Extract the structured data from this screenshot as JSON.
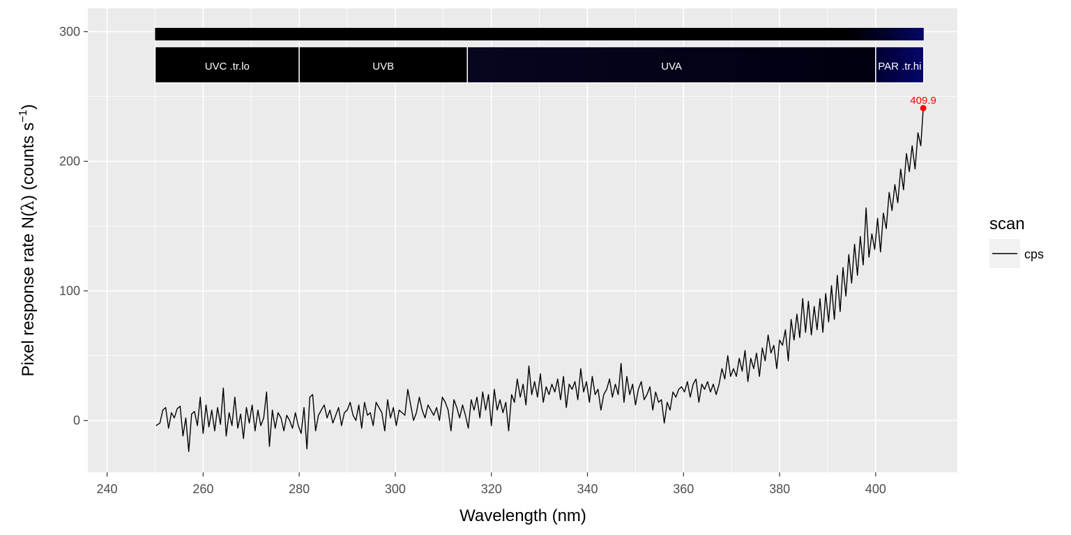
{
  "chart_data": {
    "type": "line",
    "xlabel": "Wavelength (nm)",
    "ylabel_parts": {
      "main": "Pixel  response  rate  N(",
      "lambda": "λ",
      "mid": ")  (counts  s",
      "sup": "−1",
      "end": ")"
    },
    "xlim": [
      236,
      417
    ],
    "ylim": [
      -40,
      318
    ],
    "x_ticks": [
      240,
      260,
      280,
      300,
      320,
      340,
      360,
      380,
      400
    ],
    "x_tick_labels": [
      "240",
      "260",
      "280",
      "300",
      "320",
      "340",
      "360",
      "380",
      "400"
    ],
    "y_ticks": [
      0,
      100,
      200,
      300
    ],
    "y_tick_labels": [
      "0",
      "100",
      "200",
      "300"
    ],
    "grid": true,
    "legend": {
      "title": "scan",
      "placement": "right",
      "entries": [
        "cps"
      ]
    },
    "wavebands": [
      {
        "label": "UVC .tr.lo",
        "start": 250,
        "end": 280,
        "color": "#000000"
      },
      {
        "label": "UVB",
        "start": 280,
        "end": 315,
        "color": "#000000"
      },
      {
        "label": "UVA",
        "start": 315,
        "end": 400,
        "color_start": "#080520",
        "color_end": "#000010"
      },
      {
        "label": "PAR .tr.hi",
        "start": 400,
        "end": 410,
        "color_start": "#000033",
        "color_end": "#06066b"
      }
    ],
    "peak": {
      "x": 409.9,
      "y": 241,
      "label": "409.9",
      "color": "#ff0000"
    },
    "series": [
      {
        "name": "cps",
        "color": "#000000",
        "points": [
          [
            250.2,
            -4
          ],
          [
            251.0,
            -2
          ],
          [
            251.6,
            8
          ],
          [
            252.2,
            10
          ],
          [
            252.8,
            -6
          ],
          [
            253.4,
            6
          ],
          [
            254.0,
            2
          ],
          [
            254.6,
            9
          ],
          [
            255.2,
            11
          ],
          [
            255.8,
            -12
          ],
          [
            256.4,
            2
          ],
          [
            257.0,
            -24
          ],
          [
            257.6,
            5
          ],
          [
            258.2,
            7
          ],
          [
            258.8,
            -4
          ],
          [
            259.4,
            18
          ],
          [
            260.0,
            -10
          ],
          [
            260.6,
            12
          ],
          [
            261.2,
            -5
          ],
          [
            261.8,
            8
          ],
          [
            262.4,
            -8
          ],
          [
            263.0,
            10
          ],
          [
            263.6,
            -3
          ],
          [
            264.2,
            25
          ],
          [
            264.8,
            -12
          ],
          [
            265.4,
            6
          ],
          [
            266.0,
            -4
          ],
          [
            266.6,
            18
          ],
          [
            267.2,
            -6
          ],
          [
            267.8,
            5
          ],
          [
            268.4,
            -14
          ],
          [
            269.0,
            10
          ],
          [
            269.6,
            -2
          ],
          [
            270.2,
            12
          ],
          [
            270.8,
            -8
          ],
          [
            271.4,
            8
          ],
          [
            272.0,
            -4
          ],
          [
            272.6,
            2
          ],
          [
            273.2,
            22
          ],
          [
            273.8,
            -20
          ],
          [
            274.4,
            8
          ],
          [
            275.0,
            -6
          ],
          [
            275.6,
            6
          ],
          [
            276.2,
            2
          ],
          [
            276.8,
            -8
          ],
          [
            277.4,
            4
          ],
          [
            278.0,
            0
          ],
          [
            278.6,
            -6
          ],
          [
            279.2,
            6
          ],
          [
            279.8,
            -4
          ],
          [
            280.4,
            -10
          ],
          [
            281.0,
            10
          ],
          [
            281.6,
            -22
          ],
          [
            282.2,
            18
          ],
          [
            282.8,
            20
          ],
          [
            283.4,
            -8
          ],
          [
            284.0,
            4
          ],
          [
            284.6,
            8
          ],
          [
            285.2,
            12
          ],
          [
            285.8,
            2
          ],
          [
            286.4,
            8
          ],
          [
            287.0,
            -2
          ],
          [
            287.6,
            4
          ],
          [
            288.2,
            10
          ],
          [
            288.8,
            -4
          ],
          [
            289.4,
            6
          ],
          [
            290.0,
            8
          ],
          [
            290.6,
            14
          ],
          [
            291.2,
            4
          ],
          [
            291.8,
            0
          ],
          [
            292.4,
            12
          ],
          [
            293.0,
            -6
          ],
          [
            293.6,
            14
          ],
          [
            294.2,
            4
          ],
          [
            294.8,
            6
          ],
          [
            295.4,
            -4
          ],
          [
            296.0,
            14
          ],
          [
            296.6,
            10
          ],
          [
            297.2,
            6
          ],
          [
            297.8,
            -8
          ],
          [
            298.4,
            16
          ],
          [
            299.0,
            2
          ],
          [
            299.6,
            10
          ],
          [
            300.2,
            -4
          ],
          [
            300.8,
            8
          ],
          [
            301.4,
            6
          ],
          [
            302.0,
            4
          ],
          [
            302.6,
            24
          ],
          [
            303.2,
            12
          ],
          [
            303.8,
            0
          ],
          [
            304.4,
            6
          ],
          [
            305.0,
            18
          ],
          [
            305.6,
            8
          ],
          [
            306.2,
            2
          ],
          [
            306.8,
            12
          ],
          [
            307.4,
            8
          ],
          [
            308.0,
            4
          ],
          [
            308.6,
            10
          ],
          [
            309.2,
            0
          ],
          [
            309.8,
            18
          ],
          [
            310.4,
            14
          ],
          [
            311.0,
            8
          ],
          [
            311.6,
            -8
          ],
          [
            312.2,
            16
          ],
          [
            312.8,
            10
          ],
          [
            313.4,
            2
          ],
          [
            314.0,
            12
          ],
          [
            314.6,
            4
          ],
          [
            315.2,
            -6
          ],
          [
            315.8,
            16
          ],
          [
            316.4,
            8
          ],
          [
            317.0,
            18
          ],
          [
            317.6,
            2
          ],
          [
            318.2,
            22
          ],
          [
            318.8,
            8
          ],
          [
            319.4,
            20
          ],
          [
            320.0,
            -4
          ],
          [
            320.6,
            24
          ],
          [
            321.2,
            8
          ],
          [
            321.8,
            16
          ],
          [
            322.4,
            6
          ],
          [
            323.0,
            14
          ],
          [
            323.6,
            -8
          ],
          [
            324.2,
            20
          ],
          [
            324.8,
            14
          ],
          [
            325.4,
            32
          ],
          [
            326.0,
            18
          ],
          [
            326.6,
            28
          ],
          [
            327.2,
            12
          ],
          [
            327.8,
            42
          ],
          [
            328.4,
            20
          ],
          [
            329.0,
            30
          ],
          [
            329.6,
            18
          ],
          [
            330.2,
            36
          ],
          [
            330.8,
            14
          ],
          [
            331.4,
            26
          ],
          [
            332.0,
            20
          ],
          [
            332.6,
            28
          ],
          [
            333.2,
            22
          ],
          [
            333.8,
            32
          ],
          [
            334.4,
            16
          ],
          [
            335.0,
            34
          ],
          [
            335.6,
            10
          ],
          [
            336.2,
            28
          ],
          [
            336.8,
            24
          ],
          [
            337.4,
            30
          ],
          [
            338.0,
            16
          ],
          [
            338.6,
            40
          ],
          [
            339.2,
            22
          ],
          [
            339.8,
            30
          ],
          [
            340.4,
            14
          ],
          [
            341.0,
            34
          ],
          [
            341.6,
            20
          ],
          [
            342.2,
            24
          ],
          [
            342.8,
            8
          ],
          [
            343.4,
            20
          ],
          [
            344.0,
            24
          ],
          [
            344.6,
            32
          ],
          [
            345.2,
            18
          ],
          [
            345.8,
            28
          ],
          [
            346.4,
            20
          ],
          [
            347.0,
            44
          ],
          [
            347.6,
            14
          ],
          [
            348.2,
            34
          ],
          [
            348.8,
            20
          ],
          [
            349.4,
            28
          ],
          [
            350.0,
            12
          ],
          [
            350.6,
            24
          ],
          [
            351.2,
            30
          ],
          [
            351.8,
            16
          ],
          [
            352.4,
            20
          ],
          [
            353.0,
            26
          ],
          [
            353.6,
            8
          ],
          [
            354.2,
            22
          ],
          [
            354.8,
            14
          ],
          [
            355.4,
            16
          ],
          [
            356.0,
            -2
          ],
          [
            356.6,
            14
          ],
          [
            357.2,
            8
          ],
          [
            357.8,
            22
          ],
          [
            358.4,
            18
          ],
          [
            359.0,
            24
          ],
          [
            359.6,
            26
          ],
          [
            360.2,
            22
          ],
          [
            360.8,
            30
          ],
          [
            361.4,
            18
          ],
          [
            362.0,
            28
          ],
          [
            362.6,
            32
          ],
          [
            363.2,
            14
          ],
          [
            363.8,
            28
          ],
          [
            364.4,
            24
          ],
          [
            365.0,
            30
          ],
          [
            365.6,
            22
          ],
          [
            366.2,
            28
          ],
          [
            366.8,
            20
          ],
          [
            367.4,
            28
          ],
          [
            368.0,
            40
          ],
          [
            368.6,
            32
          ],
          [
            369.2,
            50
          ],
          [
            369.8,
            34
          ],
          [
            370.4,
            40
          ],
          [
            371.0,
            34
          ],
          [
            371.6,
            48
          ],
          [
            372.2,
            38
          ],
          [
            372.8,
            54
          ],
          [
            373.4,
            30
          ],
          [
            374.0,
            48
          ],
          [
            374.6,
            40
          ],
          [
            375.2,
            52
          ],
          [
            375.8,
            34
          ],
          [
            376.4,
            56
          ],
          [
            377.0,
            46
          ],
          [
            377.6,
            66
          ],
          [
            378.2,
            52
          ],
          [
            378.8,
            58
          ],
          [
            379.4,
            40
          ],
          [
            380.0,
            62
          ],
          [
            380.6,
            58
          ],
          [
            381.2,
            70
          ],
          [
            381.8,
            46
          ],
          [
            382.4,
            78
          ],
          [
            383.0,
            62
          ],
          [
            383.6,
            82
          ],
          [
            384.2,
            64
          ],
          [
            384.8,
            94
          ],
          [
            385.4,
            68
          ],
          [
            386.0,
            92
          ],
          [
            386.6,
            66
          ],
          [
            387.2,
            88
          ],
          [
            387.8,
            70
          ],
          [
            388.4,
            94
          ],
          [
            389.0,
            68
          ],
          [
            389.6,
            98
          ],
          [
            390.2,
            76
          ],
          [
            390.8,
            104
          ],
          [
            391.4,
            78
          ],
          [
            392.0,
            112
          ],
          [
            392.6,
            84
          ],
          [
            393.2,
            118
          ],
          [
            393.8,
            96
          ],
          [
            394.4,
            128
          ],
          [
            395.0,
            106
          ],
          [
            395.6,
            136
          ],
          [
            396.2,
            112
          ],
          [
            396.8,
            142
          ],
          [
            397.4,
            120
          ],
          [
            398.0,
            164
          ],
          [
            398.6,
            126
          ],
          [
            399.2,
            144
          ],
          [
            399.8,
            132
          ],
          [
            400.4,
            156
          ],
          [
            401.0,
            130
          ],
          [
            401.6,
            160
          ],
          [
            402.2,
            148
          ],
          [
            402.8,
            176
          ],
          [
            403.4,
            162
          ],
          [
            404.0,
            182
          ],
          [
            404.6,
            168
          ],
          [
            405.2,
            194
          ],
          [
            405.8,
            178
          ],
          [
            406.4,
            206
          ],
          [
            407.0,
            192
          ],
          [
            407.6,
            212
          ],
          [
            408.2,
            194
          ],
          [
            408.8,
            222
          ],
          [
            409.4,
            212
          ],
          [
            409.9,
            241
          ]
        ]
      }
    ]
  }
}
